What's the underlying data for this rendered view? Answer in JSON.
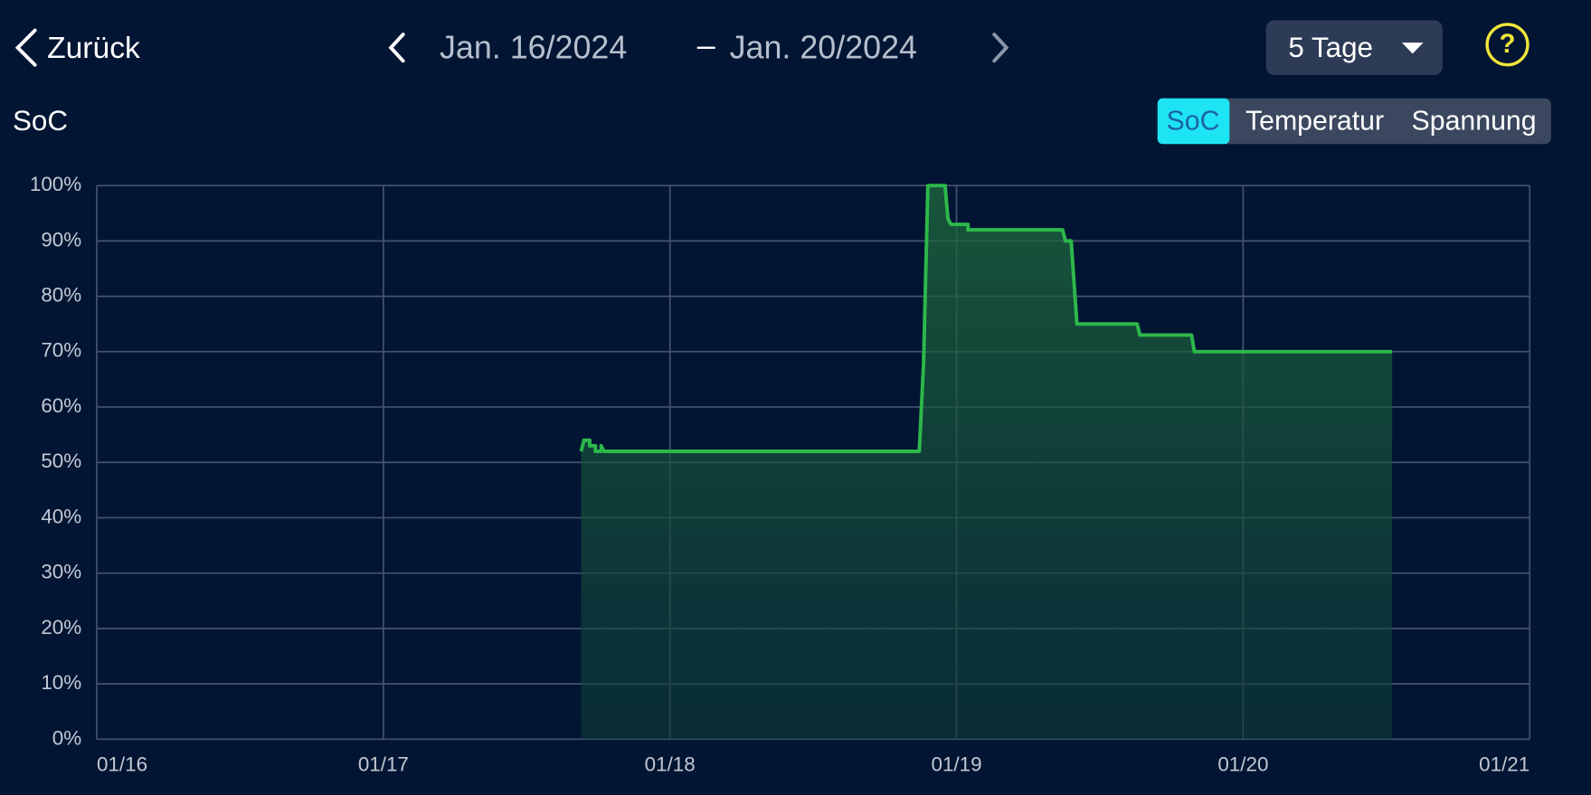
{
  "header": {
    "back_label": "Zurück",
    "date_start": "Jan. 16/2024",
    "separator": "–",
    "date_end": "Jan. 20/2024",
    "range_select": "5 Tage",
    "help": "?"
  },
  "section_label": "SoC",
  "tabs": [
    "SoC",
    "Temperatur",
    "Spannung"
  ],
  "chart_data": {
    "type": "line",
    "color": "#2db84a",
    "grid": true,
    "x": [
      17.69,
      17.7,
      17.72,
      17.72,
      17.74,
      17.74,
      17.76,
      17.76,
      17.77,
      18.87,
      18.885,
      18.9,
      18.96,
      18.97,
      18.98,
      19.04,
      19.04,
      19.37,
      19.38,
      19.4,
      19.42,
      19.63,
      19.64,
      19.82,
      19.83,
      20.52
    ],
    "values": [
      52,
      54,
      54,
      53,
      53,
      52,
      52,
      53,
      52,
      52,
      68,
      100,
      100,
      94,
      93,
      93,
      92,
      92,
      90,
      90,
      75,
      75,
      73,
      73,
      70,
      70
    ],
    "xlim": [
      16,
      21
    ],
    "xticks": [
      {
        "value": 16,
        "label": "01/16"
      },
      {
        "value": 17,
        "label": "01/17"
      },
      {
        "value": 18,
        "label": "01/18"
      },
      {
        "value": 19,
        "label": "01/19"
      },
      {
        "value": 20,
        "label": "01/20"
      },
      {
        "value": 21,
        "label": "01/21"
      }
    ],
    "ylim": [
      0,
      100
    ],
    "yticks": [
      {
        "value": 0,
        "label": "0%"
      },
      {
        "value": 10,
        "label": "10%"
      },
      {
        "value": 20,
        "label": "20%"
      },
      {
        "value": 30,
        "label": "30%"
      },
      {
        "value": 40,
        "label": "40%"
      },
      {
        "value": 50,
        "label": "50%"
      },
      {
        "value": 60,
        "label": "60%"
      },
      {
        "value": 70,
        "label": "70%"
      },
      {
        "value": 80,
        "label": "80%"
      },
      {
        "value": 90,
        "label": "90%"
      },
      {
        "value": 100,
        "label": "100%"
      }
    ]
  }
}
